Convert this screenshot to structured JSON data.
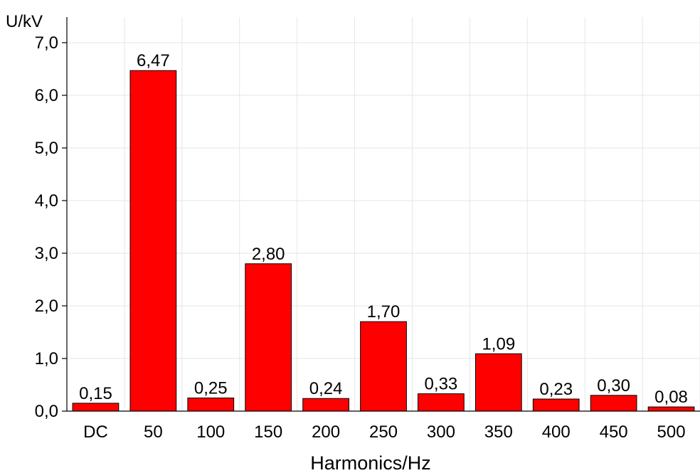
{
  "chart_data": {
    "type": "bar",
    "title": "",
    "xlabel": "Harmonics/Hz",
    "ylabel": "U/kV",
    "categories": [
      "DC",
      "50",
      "100",
      "150",
      "200",
      "250",
      "300",
      "350",
      "400",
      "450",
      "500"
    ],
    "values": [
      0.15,
      6.47,
      0.25,
      2.8,
      0.24,
      1.7,
      0.33,
      1.09,
      0.23,
      0.3,
      0.08
    ],
    "value_labels": [
      "0,15",
      "6,47",
      "0,25",
      "2,80",
      "0,24",
      "1,70",
      "0,33",
      "1,09",
      "0,23",
      "0,30",
      "0,08"
    ],
    "ylim": [
      0,
      7
    ],
    "yticks": [
      0,
      1,
      2,
      3,
      4,
      5,
      6,
      7
    ],
    "ytick_labels": [
      "0,0",
      "1,0",
      "2,0",
      "3,0",
      "4,0",
      "5,0",
      "6,0",
      "7,0"
    ],
    "grid": true,
    "bar_color": "#ff0000",
    "bar_edge_color": "#000000"
  }
}
